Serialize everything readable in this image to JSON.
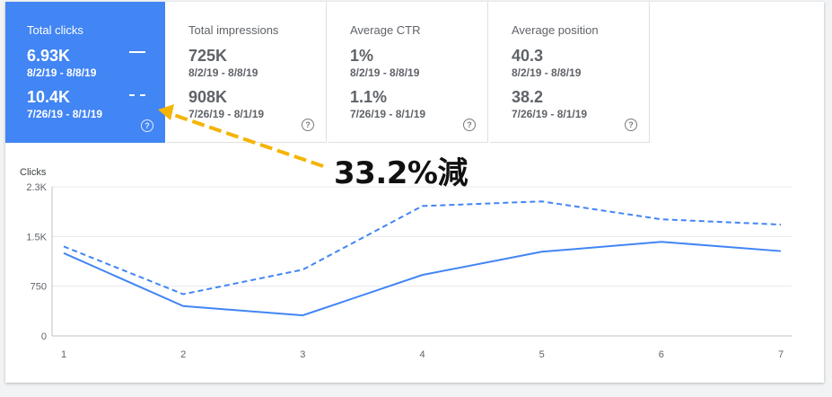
{
  "tiles": [
    {
      "label": "Total clicks",
      "current_value": "6.93K",
      "current_range": "8/2/19 - 8/8/19",
      "previous_value": "10.4K",
      "previous_range": "7/26/19 - 8/1/19",
      "selected": true
    },
    {
      "label": "Total impressions",
      "current_value": "725K",
      "current_range": "8/2/19 - 8/8/19",
      "previous_value": "908K",
      "previous_range": "7/26/19 - 8/1/19",
      "selected": false
    },
    {
      "label": "Average CTR",
      "current_value": "1%",
      "current_range": "8/2/19 - 8/8/19",
      "previous_value": "1.1%",
      "previous_range": "7/26/19 - 8/1/19",
      "selected": false
    },
    {
      "label": "Average position",
      "current_value": "40.3",
      "current_range": "8/2/19 - 8/8/19",
      "previous_value": "38.2",
      "previous_range": "7/26/19 - 8/1/19",
      "selected": false
    }
  ],
  "annotation": {
    "text": "33.2%減",
    "arrow_color": "#f4b400"
  },
  "colors": {
    "accent": "#4285f4",
    "grid": "#e8eaed",
    "axis_text": "#5f6368"
  },
  "chart_data": {
    "type": "line",
    "ylabel": "Clicks",
    "x": [
      1,
      2,
      3,
      4,
      5,
      6,
      7
    ],
    "y_ticks": [
      "0",
      "750",
      "1.5K",
      "2.3K"
    ],
    "y_tick_values": [
      0,
      750,
      1500,
      2250
    ],
    "ylim": [
      0,
      2250
    ],
    "series": [
      {
        "style": "solid",
        "values": [
          1250,
          450,
          310,
          920,
          1270,
          1420,
          1280
        ]
      },
      {
        "style": "dashed",
        "values": [
          1350,
          630,
          1000,
          1960,
          2030,
          1760,
          1680
        ]
      }
    ],
    "grid": true
  }
}
